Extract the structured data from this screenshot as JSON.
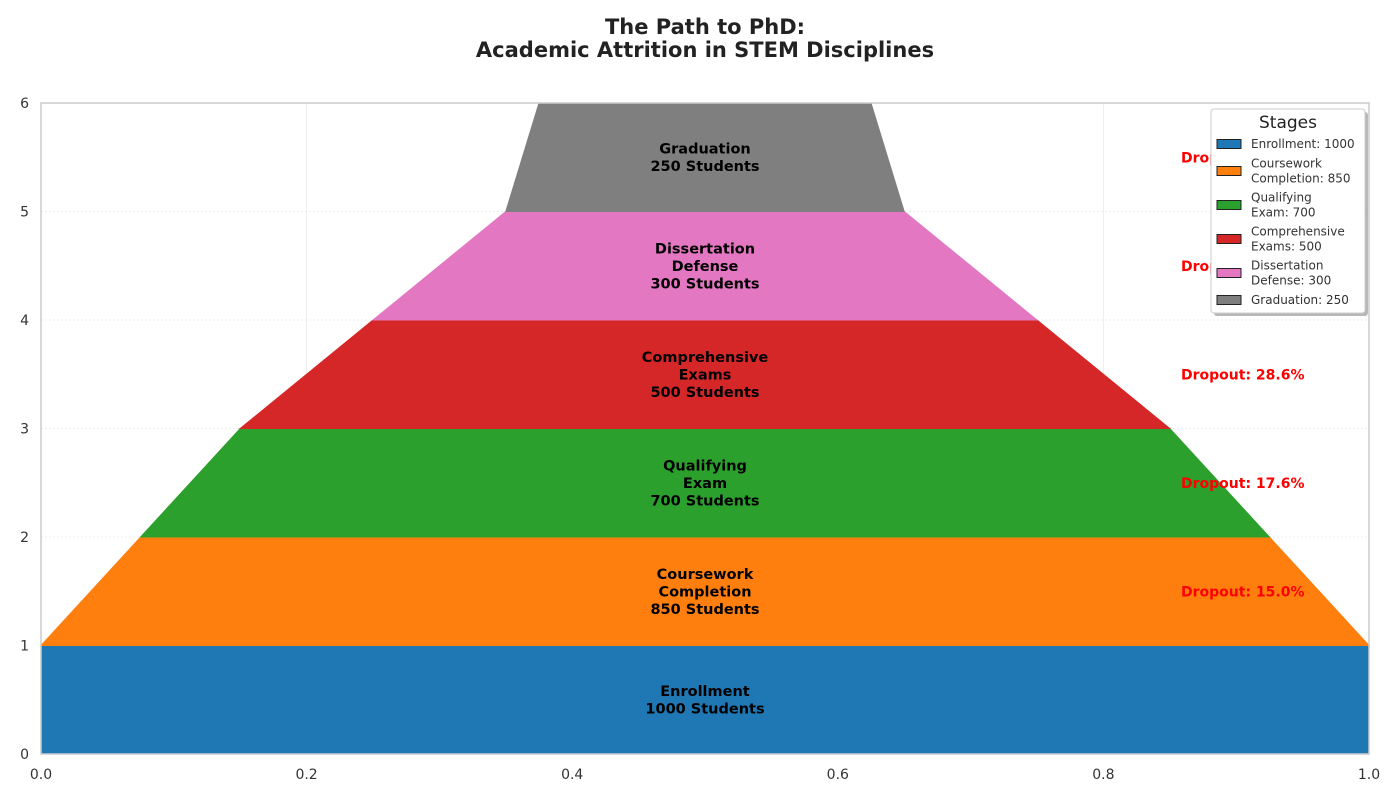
{
  "chart_data": {
    "type": "funnel",
    "title_lines": [
      "The Path to PhD:",
      "Academic Attrition in STEM Disciplines"
    ],
    "xlabel": "",
    "ylabel": "",
    "xlim": [
      0,
      1
    ],
    "ylim": [
      0,
      6
    ],
    "x_ticks": [
      "0.0",
      "0.2",
      "0.4",
      "0.6",
      "0.8",
      "1.0"
    ],
    "y_ticks": [
      "0",
      "1",
      "2",
      "3",
      "4",
      "5",
      "6"
    ],
    "grid": true,
    "stages": [
      {
        "name": "Enrollment",
        "count": 1000,
        "label_lines": [
          "Enrollment",
          "1000 Students"
        ],
        "color": "#1f77b4",
        "dropout": ""
      },
      {
        "name": "Coursework Completion",
        "count": 850,
        "label_lines": [
          "Coursework",
          "Completion",
          "850 Students"
        ],
        "color": "#ff7f0e",
        "dropout": "Dropout: 15.0%"
      },
      {
        "name": "Qualifying Exam",
        "count": 700,
        "label_lines": [
          "Qualifying",
          "Exam",
          "700 Students"
        ],
        "color": "#2ca02c",
        "dropout": "Dropout: 17.6%"
      },
      {
        "name": "Comprehensive Exams",
        "count": 500,
        "label_lines": [
          "Comprehensive",
          "Exams",
          "500 Students"
        ],
        "color": "#d62728",
        "dropout": "Dropout: 28.6%"
      },
      {
        "name": "Dissertation Defense",
        "count": 300,
        "label_lines": [
          "Dissertation",
          "Defense",
          "300 Students"
        ],
        "color": "#e377c2",
        "dropout": "Dropout: 40.0%"
      },
      {
        "name": "Graduation",
        "count": 250,
        "label_lines": [
          "Graduation",
          "250 Students"
        ],
        "color": "#7f7f7f",
        "dropout": "Dropout: 16.7%"
      }
    ],
    "legend": {
      "title": "Stages",
      "placement": "top-right",
      "entries": [
        {
          "lines": [
            "Enrollment: 1000"
          ],
          "color": "#1f77b4"
        },
        {
          "lines": [
            "Coursework",
            "Completion: 850"
          ],
          "color": "#ff7f0e"
        },
        {
          "lines": [
            "Qualifying",
            "Exam: 700"
          ],
          "color": "#2ca02c"
        },
        {
          "lines": [
            "Comprehensive",
            "Exams: 500"
          ],
          "color": "#d62728"
        },
        {
          "lines": [
            "Dissertation",
            "Defense: 300"
          ],
          "color": "#e377c2"
        },
        {
          "lines": [
            "Graduation: 250"
          ],
          "color": "#7f7f7f"
        }
      ]
    }
  }
}
